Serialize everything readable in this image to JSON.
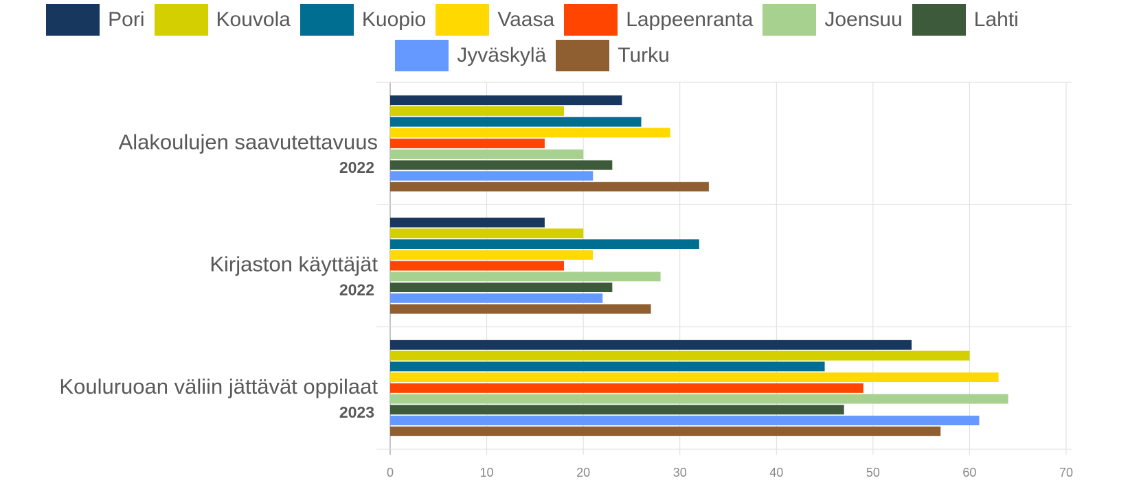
{
  "chart_data": {
    "type": "barh",
    "categories": [
      "Alakoulujen saavutettavuus",
      "Kirjaston käyttäjät",
      "Kouluruoan väliin jättävät oppilaat"
    ],
    "category_years": [
      "2022",
      "2022",
      "2023"
    ],
    "series": [
      {
        "name": "Pori",
        "color": "#17375e",
        "values": [
          24,
          16,
          54
        ]
      },
      {
        "name": "Kouvola",
        "color": "#d4cf00",
        "values": [
          18,
          20,
          60
        ]
      },
      {
        "name": "Kuopio",
        "color": "#006e91",
        "values": [
          26,
          32,
          45
        ]
      },
      {
        "name": "Vaasa",
        "color": "#ffd900",
        "values": [
          29,
          21,
          63
        ]
      },
      {
        "name": "Lappeenranta",
        "color": "#ff4500",
        "values": [
          16,
          18,
          49
        ]
      },
      {
        "name": "Joensuu",
        "color": "#a6d18f",
        "values": [
          20,
          28,
          64
        ]
      },
      {
        "name": "Lahti",
        "color": "#3d5a3a",
        "values": [
          23,
          23,
          47
        ]
      },
      {
        "name": "Jyväskylä",
        "color": "#6699ff",
        "values": [
          21,
          22,
          61
        ]
      },
      {
        "name": "Turku",
        "color": "#8f5f31",
        "values": [
          33,
          27,
          57
        ]
      }
    ],
    "xlim": [
      0,
      70
    ],
    "xticks": [
      0,
      10,
      20,
      30,
      40,
      50,
      60,
      70
    ],
    "grid": true,
    "legend": "top"
  }
}
